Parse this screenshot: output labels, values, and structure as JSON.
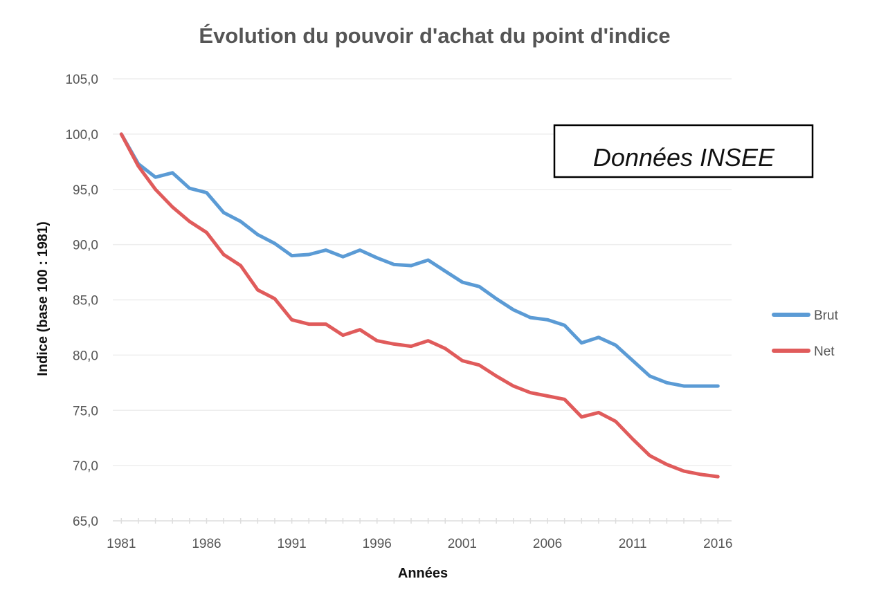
{
  "chart_data": {
    "type": "line",
    "title": "Évolution du pouvoir d'achat du point d'indice",
    "xlabel": "Années",
    "ylabel": "Indice (base 100 : 1981)",
    "x": [
      1981,
      1982,
      1983,
      1984,
      1985,
      1986,
      1987,
      1988,
      1989,
      1990,
      1991,
      1992,
      1993,
      1994,
      1995,
      1996,
      1997,
      1998,
      1999,
      2000,
      2001,
      2002,
      2003,
      2004,
      2005,
      2006,
      2007,
      2008,
      2009,
      2010,
      2011,
      2012,
      2013,
      2014,
      2015,
      2016
    ],
    "xlim": [
      1980.5,
      2016.8
    ],
    "xticks": [
      1981,
      1986,
      1991,
      1996,
      2001,
      2006,
      2011,
      2016
    ],
    "xtick_labels": [
      "1981",
      "1986",
      "1991",
      "1996",
      "2001",
      "2006",
      "2011",
      "2016"
    ],
    "ylim": [
      65,
      105
    ],
    "yticks": [
      65,
      70,
      75,
      80,
      85,
      90,
      95,
      100,
      105
    ],
    "ytick_labels": [
      "65,0",
      "70,0",
      "75,0",
      "80,0",
      "85,0",
      "90,0",
      "95,0",
      "100,0",
      "105,0"
    ],
    "grid": true,
    "legend_position": "right",
    "series": [
      {
        "name": "Brut",
        "color": "#5b9bd5",
        "values": [
          100.0,
          97.3,
          96.1,
          96.5,
          95.1,
          94.7,
          92.9,
          92.1,
          90.9,
          90.1,
          89.0,
          89.1,
          89.5,
          88.9,
          89.5,
          88.8,
          88.2,
          88.1,
          88.6,
          87.6,
          86.6,
          86.2,
          85.1,
          84.1,
          83.4,
          83.2,
          82.7,
          81.1,
          81.6,
          80.9,
          79.5,
          78.1,
          77.5,
          77.2,
          77.2,
          77.2
        ]
      },
      {
        "name": "Net",
        "color": "#e05b5b",
        "values": [
          100.0,
          97.1,
          95.0,
          93.4,
          92.1,
          91.1,
          89.1,
          88.1,
          85.9,
          85.1,
          83.2,
          82.8,
          82.8,
          81.8,
          82.3,
          81.3,
          81.0,
          80.8,
          81.3,
          80.6,
          79.5,
          79.1,
          78.1,
          77.2,
          76.6,
          76.3,
          76.0,
          74.4,
          74.8,
          74.0,
          72.4,
          70.9,
          70.1,
          69.5,
          69.2,
          69.0
        ]
      }
    ],
    "annotation": "Données INSEE"
  }
}
